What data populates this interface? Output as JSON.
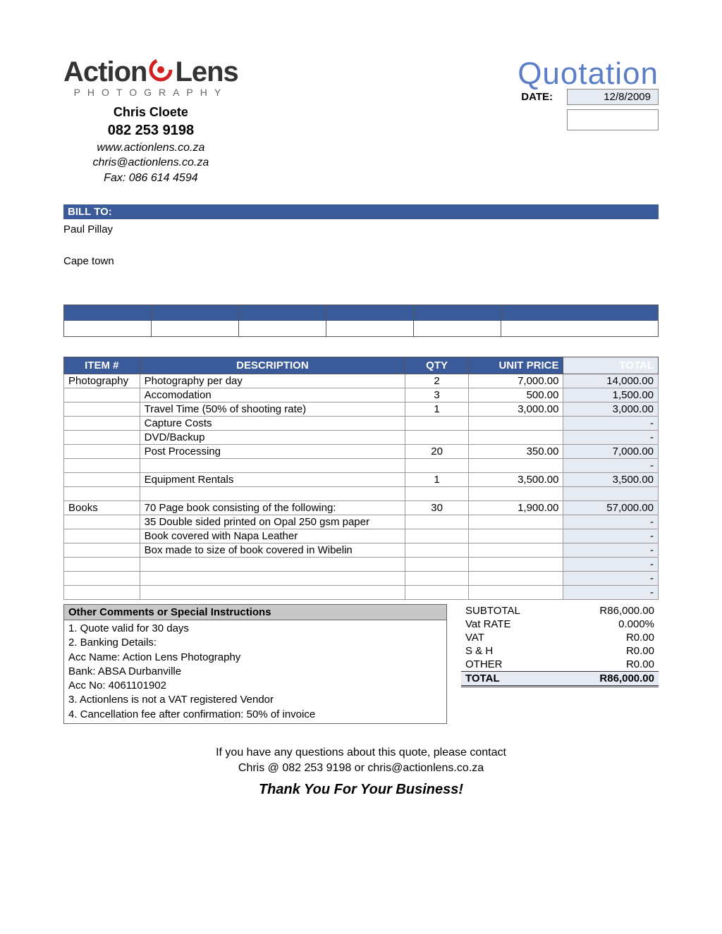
{
  "colors": {
    "brand_blue": "#3a5a9a",
    "title_blue": "#5b7fc7",
    "shade": "#e6eaf2",
    "gray_header": "#c8c8c8",
    "swirl_red": "#d32020"
  },
  "header": {
    "logo_word1": "Action",
    "logo_word2": "Lens",
    "logo_sub": "PHOTOGRAPHY",
    "name": "Chris Cloete",
    "phone": "082 253 9198",
    "website": "www.actionlens.co.za",
    "email": "chris@actionlens.co.za",
    "fax": "Fax: 086 614 4594"
  },
  "quote": {
    "title": "Quotation",
    "date_label": "DATE:",
    "date_value": "12/8/2009"
  },
  "bill": {
    "label": "BILL TO:",
    "name": "Paul Pillay",
    "city": "Cape town"
  },
  "items_table": {
    "headers": [
      "ITEM #",
      "DESCRIPTION",
      "QTY",
      "UNIT PRICE",
      "TOTAL"
    ],
    "rows": [
      {
        "item": "Photography",
        "desc": "Photography per day",
        "qty": "2",
        "price": "7,000.00",
        "total": "14,000.00"
      },
      {
        "item": "",
        "desc": "Accomodation",
        "qty": "3",
        "price": "500.00",
        "total": "1,500.00"
      },
      {
        "item": "",
        "desc": "Travel Time (50% of shooting rate)",
        "qty": "1",
        "price": "3,000.00",
        "total": "3,000.00"
      },
      {
        "item": "",
        "desc": "Capture Costs",
        "qty": "",
        "price": "",
        "total": "-"
      },
      {
        "item": "",
        "desc": "DVD/Backup",
        "qty": "",
        "price": "",
        "total": "-"
      },
      {
        "item": "",
        "desc": "Post Processing",
        "qty": "20",
        "price": "350.00",
        "total": "7,000.00"
      },
      {
        "item": "",
        "desc": "",
        "qty": "",
        "price": "",
        "total": "-"
      },
      {
        "item": "",
        "desc": "Equipment Rentals",
        "qty": "1",
        "price": "3,500.00",
        "total": "3,500.00"
      },
      {
        "item": "",
        "desc": "",
        "qty": "",
        "price": "",
        "total": ""
      },
      {
        "item": "Books",
        "desc": "70 Page book consisting of the following:",
        "qty": "30",
        "price": "1,900.00",
        "total": "57,000.00"
      },
      {
        "item": "",
        "desc": "35 Double sided printed on Opal 250 gsm paper",
        "qty": "",
        "price": "",
        "total": "-"
      },
      {
        "item": "",
        "desc": "Book covered with Napa Leather",
        "qty": "",
        "price": "",
        "total": "-"
      },
      {
        "item": "",
        "desc": "Box made to size of book covered in Wibelin",
        "qty": "",
        "price": "",
        "total": "-"
      },
      {
        "item": "",
        "desc": "",
        "qty": "",
        "price": "",
        "total": "-"
      },
      {
        "item": "",
        "desc": "",
        "qty": "",
        "price": "",
        "total": "-"
      },
      {
        "item": "",
        "desc": "",
        "qty": "",
        "price": "",
        "total": "-"
      }
    ]
  },
  "totals": {
    "rows": [
      {
        "label": "SUBTOTAL",
        "value": "R86,000.00",
        "cls": ""
      },
      {
        "label": "Vat RATE",
        "value": "0.000%",
        "cls": ""
      },
      {
        "label": "VAT",
        "value": "R0.00",
        "cls": ""
      },
      {
        "label": "S & H",
        "value": "R0.00",
        "cls": ""
      },
      {
        "label": "OTHER",
        "value": "R0.00",
        "cls": "underline"
      },
      {
        "label": "TOTAL",
        "value": "R86,000.00",
        "cls": "grand dbl"
      }
    ]
  },
  "comments": {
    "header": "Other Comments or Special Instructions",
    "lines": [
      "1. Quote valid for 30 days",
      "2. Banking Details:",
      "Acc Name: Action Lens Photography",
      "Bank: ABSA Durbanville",
      "Acc No: 4061101902",
      "3. Actionlens is not a VAT registered Vendor",
      "4. Cancellation fee after confirmation: 50% of invoice"
    ]
  },
  "footer": {
    "line1": "If you have any questions about this quote, please contact",
    "line2": "Chris @ 082 253 9198 or chris@actionlens.co.za",
    "thanks": "Thank You For Your Business!"
  }
}
